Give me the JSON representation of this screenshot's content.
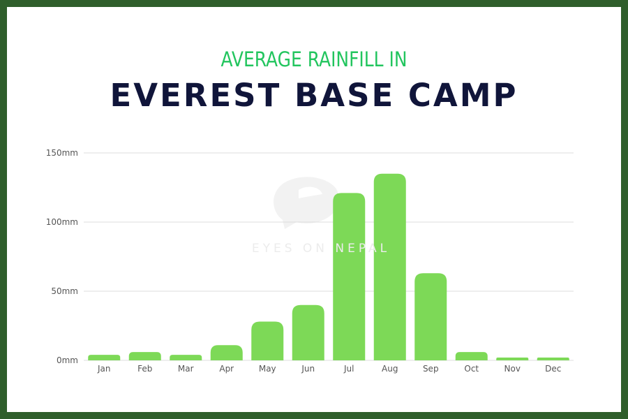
{
  "subtitle": "AVERAGE RAINFILL IN",
  "title": "EVEREST BASE CAMP",
  "watermark": "EYES ON NEPAL",
  "colors": {
    "frame": "#2f5e2b",
    "bar": "#7dd957",
    "subtitle": "#22c55e",
    "title": "#10153a",
    "grid": "#dcdcdc",
    "tick_text": "#555555"
  },
  "chart_data": {
    "type": "bar",
    "title": "EVEREST BASE CAMP",
    "subtitle": "AVERAGE RAINFILL IN",
    "categories": [
      "Jan",
      "Feb",
      "Mar",
      "Apr",
      "May",
      "Jun",
      "Jul",
      "Aug",
      "Sep",
      "Oct",
      "Nov",
      "Dec"
    ],
    "values": [
      4,
      6,
      4,
      11,
      28,
      40,
      121,
      135,
      63,
      6,
      2,
      2
    ],
    "ylim": [
      0,
      150
    ],
    "yticks": [
      0,
      50,
      100,
      150
    ],
    "ytick_labels": [
      "0mm",
      "50mm",
      "100mm",
      "150mm"
    ],
    "grid": true,
    "legend": "none"
  }
}
